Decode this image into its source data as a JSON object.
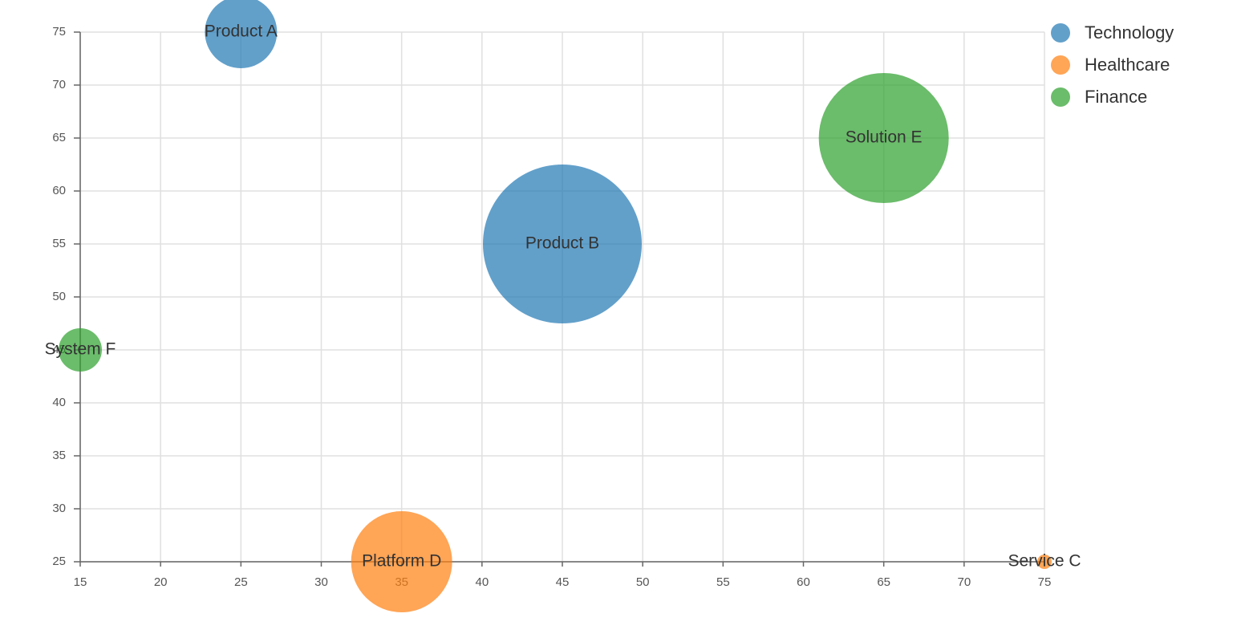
{
  "chart_data": {
    "type": "bubble",
    "series": [
      {
        "name": "Technology",
        "color": "#1f77b4",
        "x": [
          25,
          45
        ],
        "values": [
          75,
          55
        ],
        "sizes": [
          25,
          55
        ],
        "labels": [
          "Product A",
          "Product B"
        ]
      },
      {
        "name": "Healthcare",
        "color": "#ff7f0e",
        "x": [
          75,
          35
        ],
        "values": [
          25,
          25
        ],
        "sizes": [
          5,
          35
        ],
        "labels": [
          "Service C",
          "Platform D"
        ]
      },
      {
        "name": "Finance",
        "color": "#2ca02c",
        "x": [
          65,
          15
        ],
        "values": [
          65,
          45
        ],
        "sizes": [
          45,
          15
        ],
        "labels": [
          "Solution E",
          "System F"
        ]
      }
    ],
    "xlim": [
      15,
      75
    ],
    "xticks": [
      15,
      20,
      25,
      30,
      35,
      40,
      45,
      50,
      55,
      60,
      65,
      70,
      75
    ],
    "ylim": [
      25,
      75
    ],
    "yticks": [
      25,
      30,
      35,
      40,
      45,
      50,
      55,
      60,
      65,
      70,
      75
    ],
    "grid": true,
    "legend": "top-right"
  }
}
